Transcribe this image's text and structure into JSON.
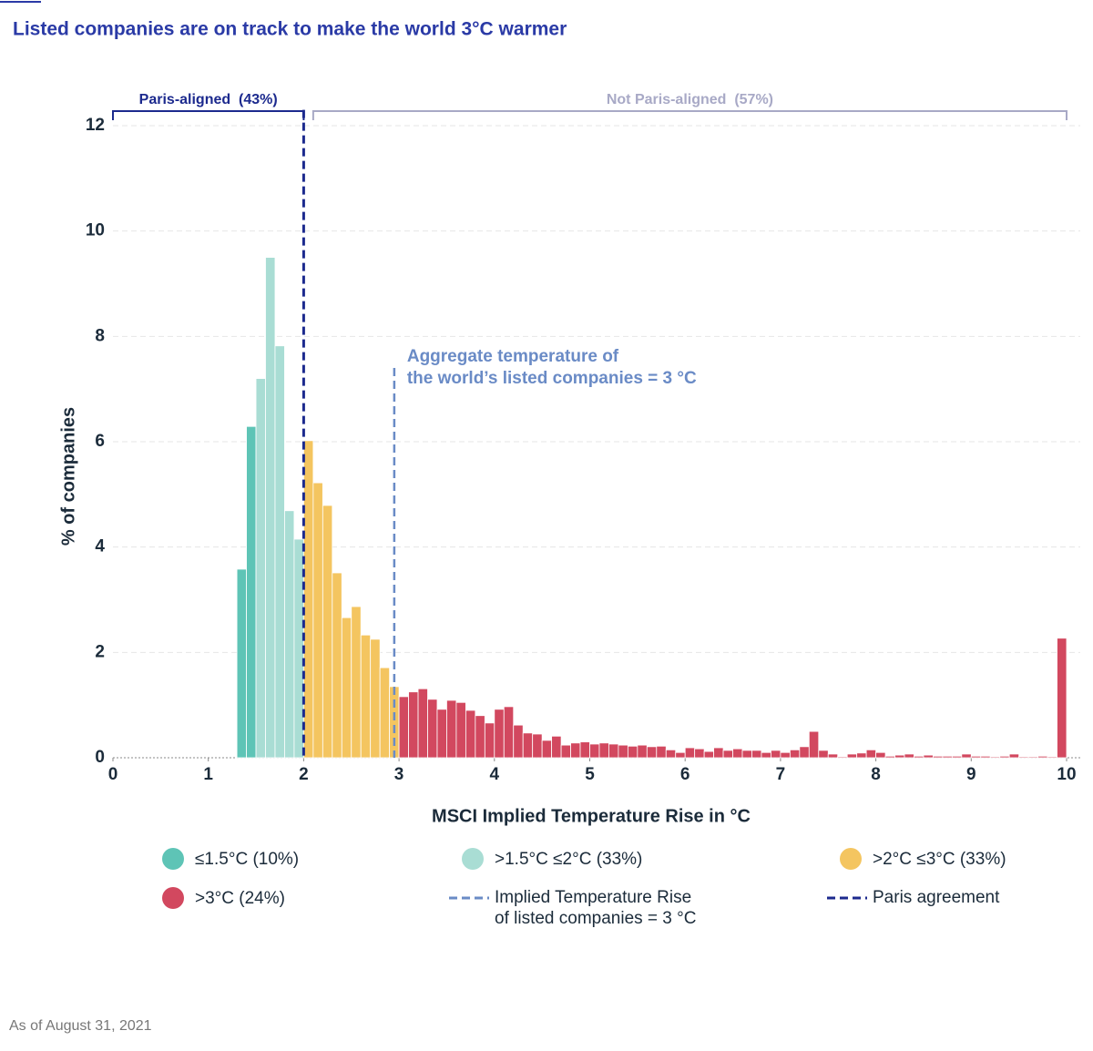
{
  "chart_data": {
    "type": "histogram",
    "title": "Listed companies are on track to make the world 3°C warmer",
    "x_label": "MSCI Implied Temperature Rise in °C",
    "y_label": "% of companies",
    "footnote": "As of August 31, 2021",
    "xlim": [
      0,
      10
    ],
    "ylim": [
      0,
      12
    ],
    "xticks": [
      0,
      1,
      2,
      3,
      4,
      5,
      6,
      7,
      8,
      9,
      10
    ],
    "yticks": [
      0,
      2,
      4,
      6,
      8,
      10,
      12
    ],
    "grid": true,
    "series": [
      {
        "name": "≤1.5°C (10%)",
        "color": "#5ec4b6",
        "bins": [
          1.3,
          1.4,
          1.5
        ],
        "values": [
          3.58,
          6.29
        ]
      },
      {
        "name": ">1.5°C ≤2°C (33%)",
        "color": "#a9ddd4",
        "bins": [
          1.5,
          1.6,
          1.7,
          1.8,
          1.9,
          2.0
        ],
        "values": [
          7.2,
          9.5,
          7.82,
          4.69,
          4.15
        ]
      },
      {
        "name": ">2°C ≤3°C (33%)",
        "color": "#f4c560",
        "bins": [
          2.0,
          2.1,
          2.2,
          2.3,
          2.4,
          2.5,
          2.6,
          2.7,
          2.8,
          2.9,
          3.0
        ],
        "values": [
          6.02,
          5.22,
          4.79,
          3.51,
          2.66,
          2.87,
          2.33,
          2.25,
          1.71,
          1.35
        ]
      },
      {
        "name": ">3°C (24%)",
        "color": "#d2485f",
        "bins": [
          3.0,
          3.1,
          3.2,
          3.3,
          3.4,
          3.5,
          3.6,
          3.7,
          3.8,
          3.9,
          4.0,
          4.1,
          4.2,
          4.3,
          4.4,
          4.5,
          4.6,
          4.7,
          4.8,
          4.9,
          5.0,
          5.1,
          5.2,
          5.3,
          5.4,
          5.5,
          5.6,
          5.7,
          5.8,
          5.9,
          6.0,
          6.1,
          6.2,
          6.3,
          6.4,
          6.5,
          6.6,
          6.7,
          6.8,
          6.9,
          7.0,
          7.1,
          7.2,
          7.3,
          7.4,
          7.5,
          7.6,
          7.7,
          7.8,
          7.9,
          8.0,
          8.1,
          8.2,
          8.3,
          8.4,
          8.5,
          8.6,
          8.7,
          8.8,
          8.9,
          9.0,
          9.1,
          9.2,
          9.3,
          9.4,
          9.5,
          9.6,
          9.7,
          9.8,
          9.9,
          10.0
        ],
        "values": [
          1.16,
          1.25,
          1.31,
          1.11,
          0.92,
          1.09,
          1.05,
          0.9,
          0.8,
          0.66,
          0.92,
          0.97,
          0.62,
          0.47,
          0.45,
          0.33,
          0.41,
          0.24,
          0.28,
          0.3,
          0.26,
          0.28,
          0.26,
          0.24,
          0.22,
          0.24,
          0.21,
          0.22,
          0.15,
          0.1,
          0.19,
          0.17,
          0.12,
          0.19,
          0.14,
          0.17,
          0.14,
          0.14,
          0.1,
          0.14,
          0.1,
          0.15,
          0.21,
          0.5,
          0.14,
          0.07,
          0.02,
          0.07,
          0.09,
          0.15,
          0.1,
          0.03,
          0.05,
          0.07,
          0.03,
          0.05,
          0.03,
          0.03,
          0.03,
          0.07,
          0.03,
          0.03,
          0.02,
          0.03,
          0.07,
          0.02,
          0.02,
          0.03,
          0.02,
          2.27
        ]
      }
    ],
    "reference_lines": [
      {
        "name": [
          "Implied Temperature Rise",
          "of listed companies = 3 °C"
        ],
        "x": 2.95,
        "y_top": 7.4,
        "color": "#6a8bc6",
        "annotation": [
          "Aggregate temperature of",
          "the world’s listed companies = 3 °C"
        ]
      },
      {
        "name": [
          "Paris agreement"
        ],
        "x": 2,
        "y_top": 12.3,
        "color": "#1c2a8e"
      }
    ],
    "brackets": [
      {
        "label": "Paris-aligned  (43%)",
        "x": [
          0,
          2
        ],
        "color": "#1c2a8e"
      },
      {
        "label": "Not Paris-aligned  (57%)",
        "x": [
          2.1,
          10
        ],
        "color": "#a8a9c6"
      }
    ]
  }
}
